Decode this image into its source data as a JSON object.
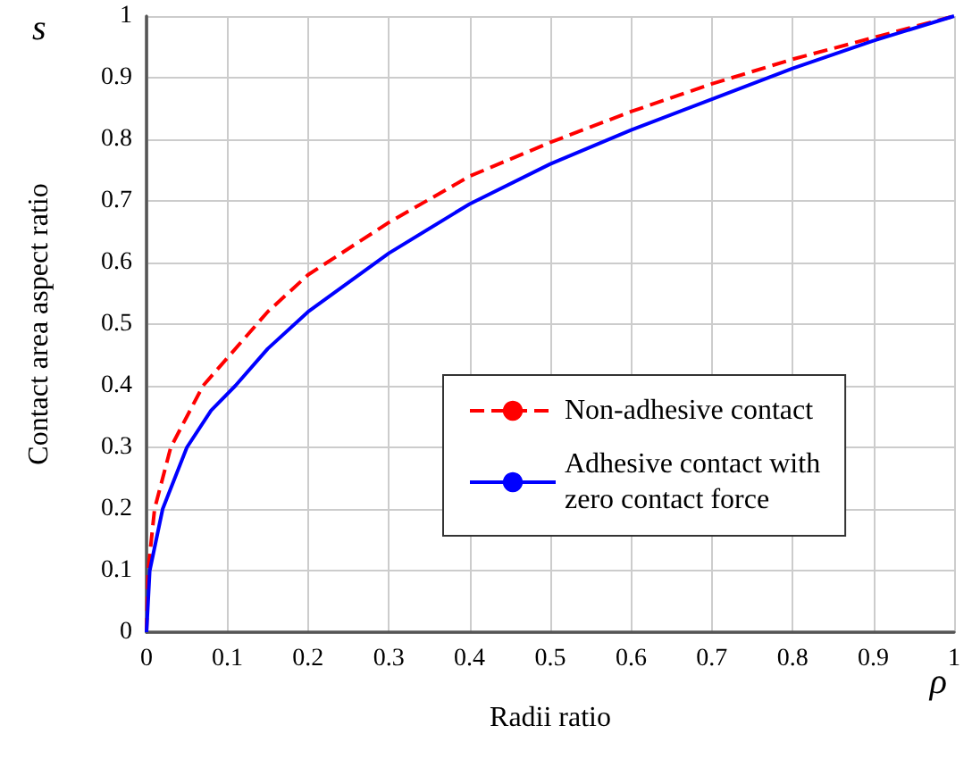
{
  "chart_data": {
    "type": "line",
    "xlabel": "Radii ratio",
    "ylabel": "Contact area aspect ratio",
    "annotations": [
      "s",
      "ρ"
    ],
    "xlim": [
      0,
      1
    ],
    "ylim": [
      0,
      1
    ],
    "xticks": [
      0,
      0.1,
      0.2,
      0.3,
      0.4,
      0.5,
      0.6,
      0.7,
      0.8,
      0.9,
      1
    ],
    "yticks": [
      0,
      0.1,
      0.2,
      0.3,
      0.4,
      0.5,
      0.6,
      0.7,
      0.8,
      0.9,
      1
    ],
    "grid": true,
    "legend": "right",
    "marker": "none",
    "series": [
      {
        "name": "Non-adhesive contact",
        "color": "#ff0000",
        "line_style": "dashed",
        "x": [
          0,
          0.002,
          0.01,
          0.03,
          0.05,
          0.07,
          0.1,
          0.15,
          0.2,
          0.3,
          0.4,
          0.5,
          0.6,
          0.7,
          0.8,
          0.9,
          1
        ],
        "values": [
          0,
          0.1,
          0.2,
          0.3,
          0.35,
          0.4,
          0.445,
          0.52,
          0.58,
          0.665,
          0.74,
          0.795,
          0.845,
          0.89,
          0.93,
          0.965,
          1
        ]
      },
      {
        "name": "Adhesive contact with zero contact force",
        "color": "#0000ff",
        "line_style": "solid",
        "x": [
          0,
          0.004,
          0.02,
          0.05,
          0.08,
          0.11,
          0.15,
          0.2,
          0.3,
          0.4,
          0.5,
          0.6,
          0.7,
          0.8,
          0.9,
          1
        ],
        "values": [
          0,
          0.1,
          0.2,
          0.3,
          0.36,
          0.4,
          0.46,
          0.52,
          0.615,
          0.695,
          0.76,
          0.815,
          0.865,
          0.915,
          0.96,
          1
        ]
      }
    ]
  }
}
